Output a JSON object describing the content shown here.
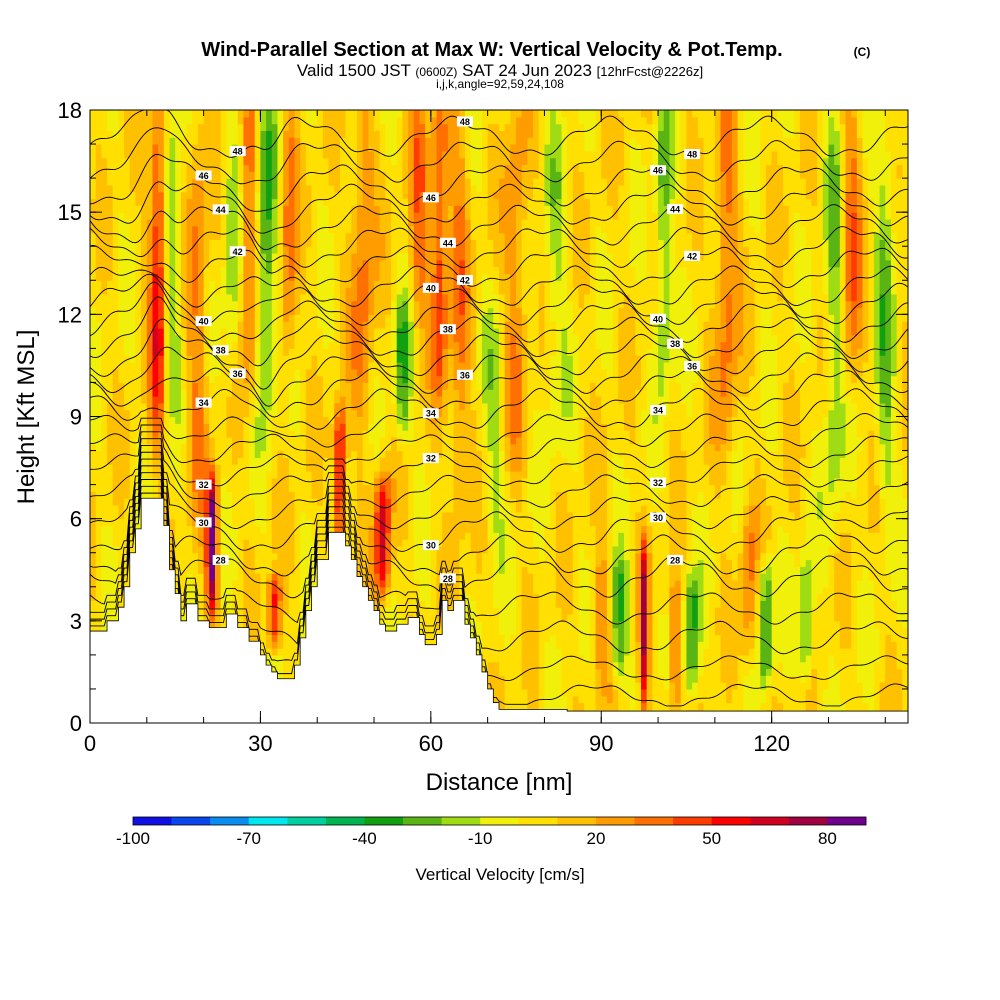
{
  "chart_data": {
    "type": "heatmap",
    "title": "Wind-Parallel Section at Max W: Vertical Velocity & Pot.Temp.",
    "title_mark": "(C)",
    "subtitle_main": "Valid 1500 JST",
    "subtitle_utc": "(0600Z)",
    "subtitle_date": "SAT 24 Jun 2023",
    "subtitle_fcst": "[12hrFcst@2226z]",
    "subtitle_params": "i,j,k,angle=92,59,24,108",
    "xlabel": "Distance [nm]",
    "ylabel": "Height [Kft MSL]",
    "xlim": [
      0,
      144
    ],
    "ylim": [
      0,
      18
    ],
    "x_ticks": [
      0,
      30,
      60,
      90,
      120
    ],
    "x_tick_labels": [
      "0",
      "30",
      "60",
      "90",
      "120"
    ],
    "y_ticks": [
      0,
      3,
      6,
      9,
      12,
      15,
      18
    ],
    "y_tick_labels": [
      "0",
      "3",
      "6",
      "9",
      "12",
      "15",
      "18"
    ],
    "colorbar": {
      "label": "Vertical Velocity [cm/s]",
      "levels": [
        -100,
        -90,
        -80,
        -70,
        -60,
        -50,
        -40,
        -30,
        -20,
        -10,
        0,
        10,
        20,
        30,
        40,
        50,
        60,
        70,
        80,
        90
      ],
      "colors": [
        "#1010e6",
        "#0a46ee",
        "#0a8cf0",
        "#00e6ee",
        "#00d0a0",
        "#00b450",
        "#10a010",
        "#5ab414",
        "#a0dc14",
        "#f0f00a",
        "#ffe000",
        "#ffc000",
        "#ff9c00",
        "#ff7000",
        "#ff3c00",
        "#ff0000",
        "#d00020",
        "#a00040",
        "#70008c"
      ],
      "tick_values": [
        -100,
        -70,
        -40,
        -10,
        20,
        50,
        80
      ],
      "tick_labels": [
        "-100",
        "-70",
        "-40",
        "-10",
        "20",
        "50",
        "80"
      ]
    },
    "background_w": 5,
    "w_features": [
      {
        "x": 12,
        "y0": 8.5,
        "y1": 18,
        "w": 50,
        "width": 1.5
      },
      {
        "x": 14.5,
        "y0": 10,
        "y1": 18,
        "w": -25,
        "width": 1.5
      },
      {
        "x": 19,
        "y0": 6,
        "y1": 18,
        "w": 25,
        "width": 1.8
      },
      {
        "x": 21.5,
        "y0": 3.5,
        "y1": 7,
        "w": 80,
        "width": 1.0
      },
      {
        "x": 25,
        "y0": 10,
        "y1": 18,
        "w": -20,
        "width": 1.5
      },
      {
        "x": 28,
        "y0": 10,
        "y1": 18,
        "w": 35,
        "width": 1.5
      },
      {
        "x": 31,
        "y0": 9.5,
        "y1": 18,
        "w": -40,
        "width": 1.8
      },
      {
        "x": 32.5,
        "y0": 2.5,
        "y1": 4,
        "w": 50,
        "width": 1.2
      },
      {
        "x": 35,
        "y0": 10.5,
        "y1": 18,
        "w": 30,
        "width": 1.5
      },
      {
        "x": 44,
        "y0": 5.5,
        "y1": 9,
        "w": 60,
        "width": 1.1
      },
      {
        "x": 48,
        "y0": 9,
        "y1": 18,
        "w": 30,
        "width": 2.0
      },
      {
        "x": 51.5,
        "y0": 4,
        "y1": 7,
        "w": 60,
        "width": 1.4
      },
      {
        "x": 55,
        "y0": 8.5,
        "y1": 12,
        "w": -35,
        "width": 1.4
      },
      {
        "x": 58,
        "y0": 12,
        "y1": 18,
        "w": 30,
        "width": 1.6
      },
      {
        "x": 61.5,
        "y0": 10,
        "y1": 18,
        "w": 45,
        "width": 1.4
      },
      {
        "x": 65,
        "y0": 6,
        "y1": 18,
        "w": 25,
        "width": 1.8
      },
      {
        "x": 71,
        "y0": 5,
        "y1": 12,
        "w": -15,
        "width": 2.0
      },
      {
        "x": 75,
        "y0": 8,
        "y1": 18,
        "w": 25,
        "width": 2.0
      },
      {
        "x": 82,
        "y0": 8,
        "y1": 18,
        "w": -15,
        "width": 2.2
      },
      {
        "x": 90,
        "y0": 1,
        "y1": 5,
        "w": 20,
        "width": 2.0
      },
      {
        "x": 93,
        "y0": 1.5,
        "y1": 4.5,
        "w": -40,
        "width": 1.5
      },
      {
        "x": 97.5,
        "y0": 0.5,
        "y1": 5,
        "w": 60,
        "width": 0.8
      },
      {
        "x": 101,
        "y0": 10,
        "y1": 18,
        "w": -30,
        "width": 1.5
      },
      {
        "x": 103,
        "y0": 0.5,
        "y1": 4,
        "w": 35,
        "width": 1.1
      },
      {
        "x": 106,
        "y0": 1,
        "y1": 4,
        "w": -40,
        "width": 1.4
      },
      {
        "x": 112,
        "y0": 8,
        "y1": 18,
        "w": 30,
        "width": 2.0
      },
      {
        "x": 116,
        "y0": 2,
        "y1": 6,
        "w": 25,
        "width": 1.5
      },
      {
        "x": 119,
        "y0": 1.5,
        "y1": 4.5,
        "w": -40,
        "width": 1.3
      },
      {
        "x": 126,
        "y0": 1.5,
        "y1": 4.5,
        "w": -35,
        "width": 1.3
      },
      {
        "x": 131,
        "y0": 6,
        "y1": 18,
        "w": -25,
        "width": 1.8
      },
      {
        "x": 134,
        "y0": 10,
        "y1": 18,
        "w": 30,
        "width": 1.8
      },
      {
        "x": 140,
        "y0": 6,
        "y1": 18,
        "w": -25,
        "width": 1.8
      }
    ],
    "terrain": [
      [
        0,
        2.7
      ],
      [
        3,
        2.7
      ],
      [
        3,
        3
      ],
      [
        5,
        3
      ],
      [
        5,
        3.4
      ],
      [
        6,
        3.4
      ],
      [
        6,
        4
      ],
      [
        7,
        4
      ],
      [
        7,
        5
      ],
      [
        8,
        5
      ],
      [
        8,
        5.7
      ],
      [
        9,
        5.7
      ],
      [
        9,
        6.6
      ],
      [
        13,
        6.6
      ],
      [
        13,
        5.8
      ],
      [
        14,
        5.8
      ],
      [
        14,
        4.5
      ],
      [
        15,
        4.5
      ],
      [
        15,
        3.8
      ],
      [
        16,
        3.8
      ],
      [
        16,
        3
      ],
      [
        17,
        3
      ],
      [
        17,
        3.5
      ],
      [
        19,
        3.5
      ],
      [
        19,
        3
      ],
      [
        21,
        3
      ],
      [
        21,
        2.8
      ],
      [
        24,
        2.8
      ],
      [
        24,
        3.2
      ],
      [
        26,
        3.2
      ],
      [
        26,
        2.8
      ],
      [
        28,
        2.8
      ],
      [
        28,
        2.4
      ],
      [
        30,
        2.4
      ],
      [
        30,
        2.0
      ],
      [
        31,
        2.0
      ],
      [
        31,
        1.7
      ],
      [
        32,
        1.7
      ],
      [
        32,
        1.5
      ],
      [
        33,
        1.5
      ],
      [
        33,
        1.3
      ],
      [
        36,
        1.3
      ],
      [
        36,
        1.7
      ],
      [
        37,
        1.7
      ],
      [
        37,
        2.5
      ],
      [
        38,
        2.5
      ],
      [
        38,
        3.3
      ],
      [
        39,
        3.3
      ],
      [
        39,
        4
      ],
      [
        40,
        4
      ],
      [
        40,
        4.8
      ],
      [
        42,
        4.8
      ],
      [
        42,
        5.6
      ],
      [
        45,
        5.6
      ],
      [
        45,
        5.2
      ],
      [
        46,
        5.2
      ],
      [
        46,
        4.8
      ],
      [
        47,
        4.8
      ],
      [
        47,
        4.3
      ],
      [
        48,
        4.3
      ],
      [
        48,
        4.0
      ],
      [
        49,
        4.0
      ],
      [
        49,
        3.6
      ],
      [
        50,
        3.6
      ],
      [
        50,
        3.3
      ],
      [
        51,
        3.3
      ],
      [
        51,
        2.9
      ],
      [
        52,
        2.9
      ],
      [
        52,
        2.7
      ],
      [
        54,
        2.7
      ],
      [
        54,
        2.9
      ],
      [
        56,
        2.9
      ],
      [
        56,
        3.1
      ],
      [
        58,
        3.1
      ],
      [
        58,
        2.6
      ],
      [
        59,
        2.6
      ],
      [
        59,
        2.3
      ],
      [
        61,
        2.3
      ],
      [
        61,
        2.6
      ],
      [
        62,
        2.6
      ],
      [
        62,
        3.6
      ],
      [
        63,
        3.6
      ],
      [
        63,
        3.3
      ],
      [
        64,
        3.3
      ],
      [
        64,
        3.6
      ],
      [
        66,
        3.6
      ],
      [
        66,
        2.9
      ],
      [
        67,
        2.9
      ],
      [
        67,
        2.5
      ],
      [
        68,
        2.5
      ],
      [
        68,
        2.0
      ],
      [
        69,
        2.0
      ],
      [
        69,
        1.5
      ],
      [
        70,
        1.5
      ],
      [
        70,
        1.0
      ],
      [
        71,
        1.0
      ],
      [
        71,
        0.6
      ],
      [
        72,
        0.6
      ],
      [
        72,
        0.4
      ],
      [
        84,
        0.4
      ],
      [
        84,
        0.35
      ],
      [
        144,
        0.35
      ]
    ],
    "theta_contours": [
      {
        "base": 0.8,
        "amp": 0.3,
        "label": ""
      },
      {
        "base": 1.6,
        "amp": 0.3,
        "label": ""
      },
      {
        "base": 2.5,
        "amp": 0.4,
        "label": ""
      },
      {
        "base": 3.4,
        "amp": 0.4,
        "label": ""
      },
      {
        "base": 4.3,
        "amp": 0.5,
        "label": "28"
      },
      {
        "base": 4.9,
        "amp": 0.5,
        "label": ""
      },
      {
        "base": 5.6,
        "amp": 0.5,
        "label": "30"
      },
      {
        "base": 6.2,
        "amp": 0.4,
        "label": ""
      },
      {
        "base": 6.8,
        "amp": 0.4,
        "label": ""
      },
      {
        "base": 7.4,
        "amp": 0.4,
        "label": "32"
      },
      {
        "base": 8.0,
        "amp": 0.4,
        "label": ""
      },
      {
        "base": 8.6,
        "amp": 0.4,
        "label": ""
      },
      {
        "base": 9.2,
        "amp": 0.5,
        "label": "34"
      },
      {
        "base": 9.8,
        "amp": 0.5,
        "label": ""
      },
      {
        "base": 10.3,
        "amp": 0.5,
        "label": "36"
      },
      {
        "base": 10.8,
        "amp": 0.5,
        "label": ""
      },
      {
        "base": 11.3,
        "amp": 0.5,
        "label": "38"
      },
      {
        "base": 11.8,
        "amp": 0.5,
        "label": ""
      },
      {
        "base": 12.3,
        "amp": 0.5,
        "label": "40"
      },
      {
        "base": 12.8,
        "amp": 0.5,
        "label": ""
      },
      {
        "base": 13.4,
        "amp": 0.5,
        "label": "42"
      },
      {
        "base": 14.0,
        "amp": 0.5,
        "label": ""
      },
      {
        "base": 14.6,
        "amp": 0.5,
        "label": "44"
      },
      {
        "base": 15.2,
        "amp": 0.5,
        "label": ""
      },
      {
        "base": 15.8,
        "amp": 0.5,
        "label": "46"
      },
      {
        "base": 16.5,
        "amp": 0.5,
        "label": ""
      },
      {
        "base": 17.2,
        "amp": 0.5,
        "label": "48"
      }
    ]
  }
}
